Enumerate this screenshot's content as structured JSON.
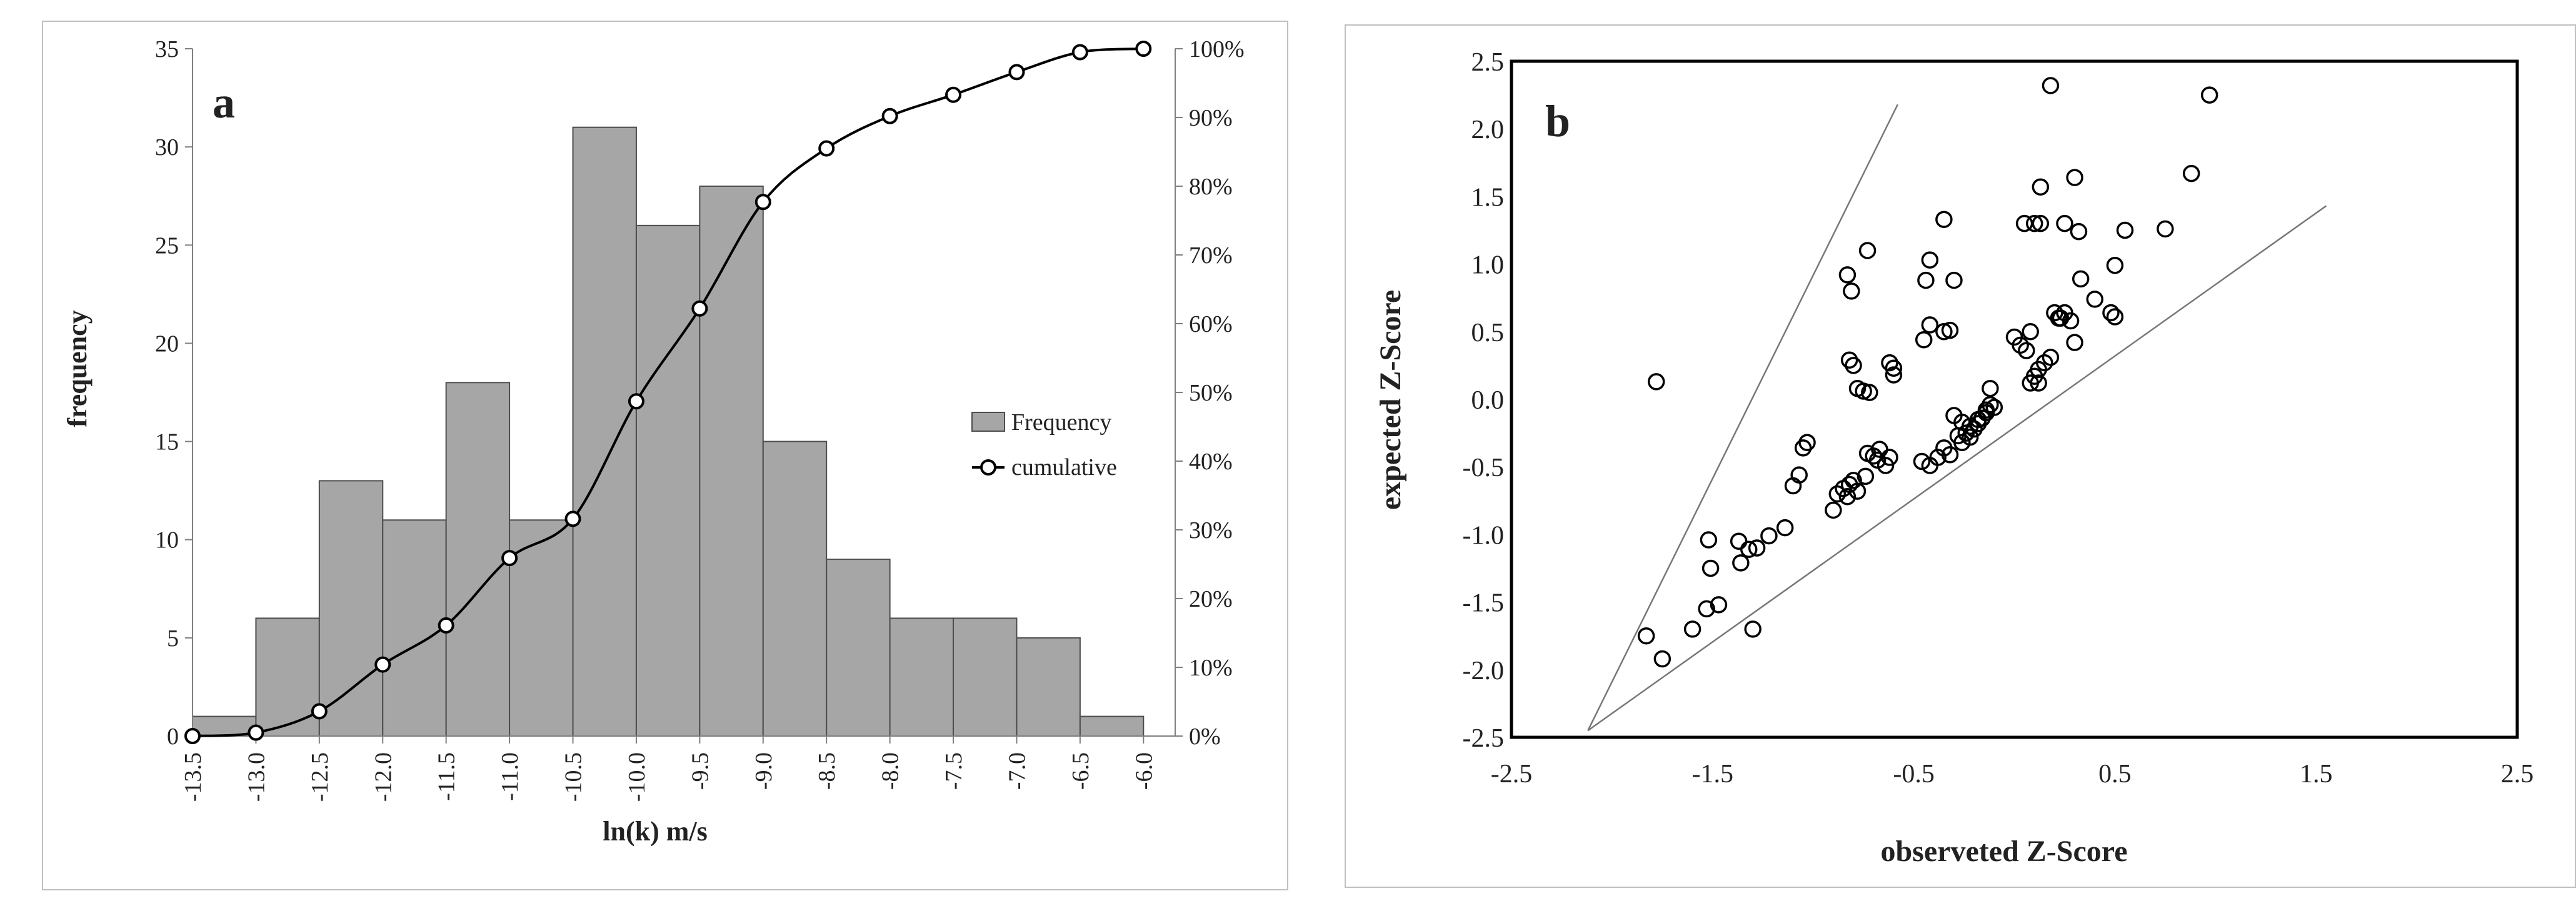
{
  "chart_data": [
    {
      "type": "bar",
      "panel_label": "a",
      "xlabel": "ln(k) m/s",
      "ylabel": "frequency",
      "x_ticks": [
        "-13.5",
        "-13.0",
        "-12.5",
        "-12.0",
        "-11.5",
        "-11.0",
        "-10.5",
        "-10.0",
        "-9.5",
        "-9.0",
        "-8.5",
        "-8.0",
        "-7.5",
        "-7.0",
        "-6.5",
        "-6.0"
      ],
      "y_ticks": [
        "0",
        "5",
        "10",
        "15",
        "20",
        "25",
        "30",
        "35"
      ],
      "y2_ticks": [
        "0%",
        "10%",
        "20%",
        "30%",
        "40%",
        "50%",
        "60%",
        "70%",
        "80%",
        "90%",
        "100%"
      ],
      "ylim": [
        0,
        35
      ],
      "y2lim": [
        0,
        100
      ],
      "bars": [
        {
          "from": -13.5,
          "to": -13.0,
          "value": 1
        },
        {
          "from": -13.0,
          "to": -12.5,
          "value": 6
        },
        {
          "from": -12.5,
          "to": -12.0,
          "value": 13
        },
        {
          "from": -12.0,
          "to": -11.5,
          "value": 11
        },
        {
          "from": -11.5,
          "to": -11.0,
          "value": 18
        },
        {
          "from": -11.0,
          "to": -10.5,
          "value": 11
        },
        {
          "from": -10.5,
          "to": -10.0,
          "value": 31
        },
        {
          "from": -10.0,
          "to": -9.5,
          "value": 26
        },
        {
          "from": -9.5,
          "to": -9.0,
          "value": 28
        },
        {
          "from": -9.0,
          "to": -8.5,
          "value": 15
        },
        {
          "from": -8.5,
          "to": -8.0,
          "value": 9
        },
        {
          "from": -8.0,
          "to": -7.5,
          "value": 6
        },
        {
          "from": -7.5,
          "to": -7.0,
          "value": 6
        },
        {
          "from": -7.0,
          "to": -6.5,
          "value": 5
        },
        {
          "from": -6.5,
          "to": -6.0,
          "value": 1
        }
      ],
      "cumulative": {
        "x": [
          -13.5,
          -13.0,
          -12.5,
          -12.0,
          -11.5,
          -11.0,
          -10.5,
          -10.0,
          -9.5,
          -9.0,
          -8.5,
          -8.0,
          -7.5,
          -7.0,
          -6.5,
          -6.0
        ],
        "y": [
          0,
          0.5,
          3.6,
          10.4,
          16.1,
          25.9,
          31.6,
          48.7,
          62.2,
          77.7,
          85.5,
          90.2,
          93.3,
          96.6,
          99.5,
          100
        ]
      },
      "legend": [
        {
          "label": "Frequency",
          "kind": "bar"
        },
        {
          "label": "cumulative",
          "kind": "line-marker"
        }
      ],
      "legend_position": "right",
      "colors": {
        "bar": "#a6a6a6",
        "bar_edge": "#4d4d4d",
        "line": "#000000"
      }
    },
    {
      "type": "scatter",
      "panel_label": "b",
      "xlabel": "observeted Z-Score",
      "ylabel": "expected Z-Score",
      "xlim": [
        -2.5,
        2.5
      ],
      "ylim": [
        -2.5,
        2.5
      ],
      "x_ticks": [
        "-2.5",
        "-1.5",
        "-0.5",
        "0.5",
        "1.5",
        "2.5"
      ],
      "y_ticks": [
        "2.5",
        "2.0",
        "1.5",
        "1.0",
        "0.5",
        "0.0",
        "-0.5",
        "-1.0",
        "-1.5",
        "-2.0",
        "-2.5"
      ],
      "envelope_lines": [
        {
          "x1": -2.12,
          "y1": -2.45,
          "x2": -0.58,
          "y2": 2.18
        },
        {
          "x1": -2.12,
          "y1": -2.45,
          "x2": 1.55,
          "y2": 1.43
        }
      ],
      "points": {
        "x": [
          -1.78,
          -1.83,
          -1.75,
          -1.6,
          -1.53,
          -1.51,
          -1.52,
          -1.47,
          -1.37,
          -1.36,
          -1.32,
          -1.3,
          -1.28,
          -1.22,
          -1.14,
          -1.1,
          -1.07,
          -1.05,
          -1.03,
          -0.9,
          -0.88,
          -0.83,
          -0.85,
          -0.82,
          -0.8,
          -0.78,
          -0.74,
          -0.73,
          -0.7,
          -0.68,
          -0.67,
          -0.64,
          -0.62,
          -0.6,
          -0.82,
          -0.8,
          -0.78,
          -0.75,
          -0.72,
          -0.62,
          -0.6,
          -0.83,
          -0.81,
          -0.73,
          -0.46,
          -0.42,
          -0.38,
          -0.35,
          -0.32,
          -0.28,
          -0.26,
          -0.24,
          -0.22,
          -0.2,
          -0.18,
          -0.16,
          -0.14,
          -0.12,
          -0.3,
          -0.26,
          -0.22,
          -0.18,
          -0.14,
          -0.1,
          -0.44,
          -0.42,
          -0.35,
          -0.3,
          -0.42,
          -0.45,
          -0.35,
          -0.32,
          0.0,
          0.03,
          0.06,
          0.08,
          0.1,
          0.12,
          0.15,
          0.18,
          0.22,
          0.25,
          0.28,
          0.3,
          0.33,
          0.05,
          0.1,
          0.13,
          0.13,
          0.2,
          0.23,
          0.3,
          0.25,
          0.32,
          0.4,
          0.48,
          0.5,
          0.5,
          0.55,
          0.75,
          0.88,
          0.97,
          0.18,
          -0.12,
          0.08,
          0.12
        ],
        "y": [
          0.13,
          -1.75,
          -1.92,
          -1.7,
          -1.55,
          -1.25,
          -1.04,
          -1.52,
          -1.05,
          -1.21,
          -1.11,
          -1.7,
          -1.1,
          -1.01,
          -0.95,
          -0.64,
          -0.56,
          -0.36,
          -0.32,
          -0.82,
          -0.7,
          -0.72,
          -0.66,
          -0.63,
          -0.6,
          -0.68,
          -0.57,
          -0.4,
          -0.42,
          -0.45,
          -0.37,
          -0.49,
          -0.43,
          0.18,
          0.29,
          0.25,
          0.08,
          0.06,
          0.05,
          0.27,
          0.23,
          0.92,
          0.8,
          1.1,
          -0.46,
          -0.49,
          -0.43,
          -0.36,
          -0.41,
          -0.27,
          -0.32,
          -0.25,
          -0.28,
          -0.22,
          -0.18,
          -0.14,
          -0.1,
          -0.04,
          -0.12,
          -0.17,
          -0.2,
          -0.15,
          -0.08,
          -0.06,
          0.88,
          1.03,
          1.33,
          0.88,
          0.55,
          0.44,
          0.5,
          0.51,
          0.46,
          0.4,
          0.36,
          0.12,
          0.17,
          0.22,
          0.27,
          0.31,
          0.6,
          0.64,
          0.58,
          0.42,
          0.89,
          1.3,
          1.3,
          1.57,
          1.3,
          0.64,
          0.6,
          1.64,
          1.3,
          1.24,
          0.74,
          0.64,
          0.61,
          0.99,
          1.25,
          1.26,
          1.67,
          2.25,
          2.32,
          0.08,
          0.5,
          0.12
        ]
      },
      "colors": {
        "marker_edge": "#000000",
        "line": "#777777",
        "frame": "#000000"
      }
    }
  ]
}
